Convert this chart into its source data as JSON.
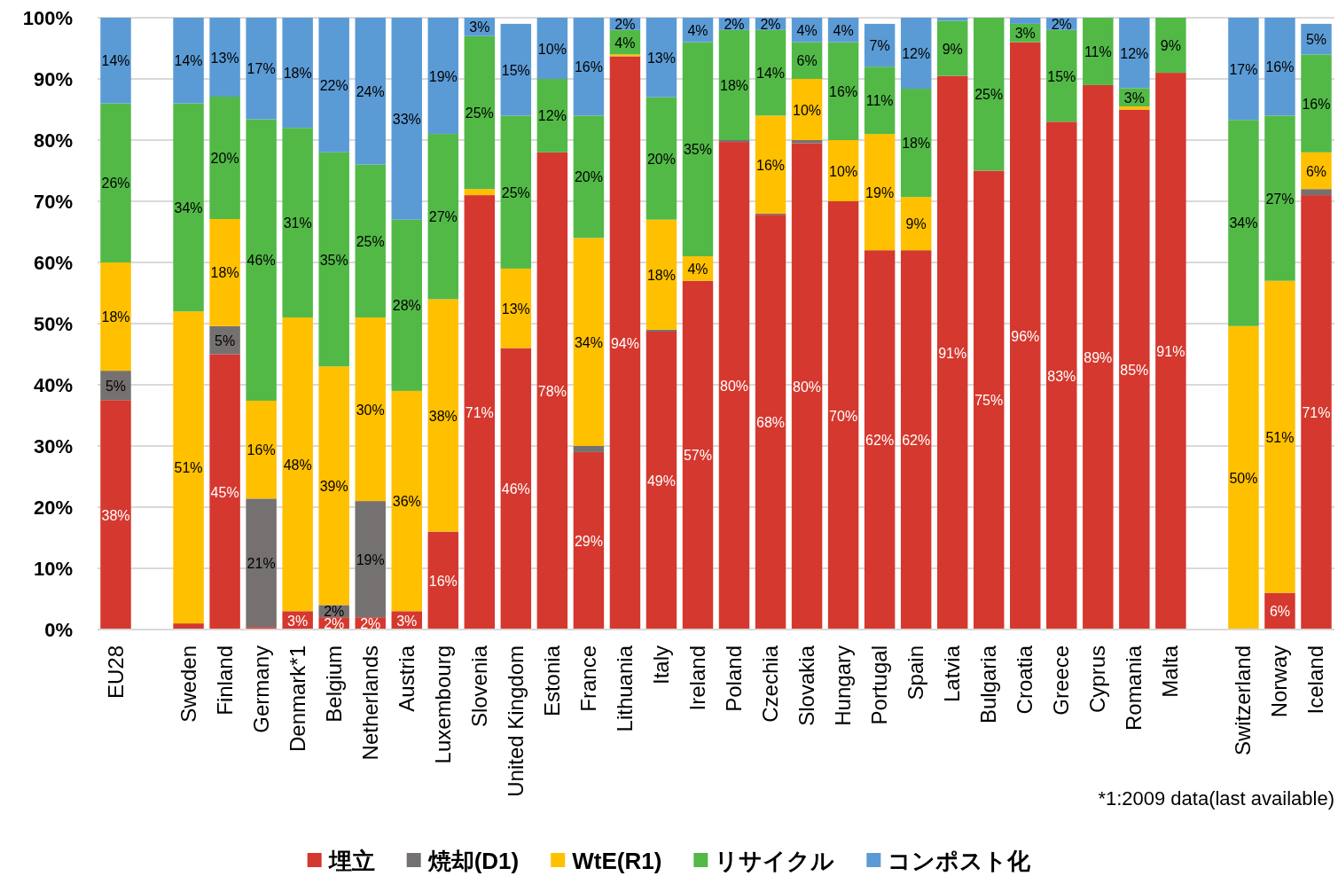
{
  "chart_data": {
    "type": "bar",
    "stacked": true,
    "categories": [
      "EU28",
      null,
      "Sweden",
      "Finland",
      "Germany",
      "Denmark*1",
      "Belgium",
      "Netherlands",
      "Austria",
      "Luxembourg",
      "Slovenia",
      "United Kingdom",
      "Estonia",
      "France",
      "Lithuania",
      "Italy",
      "Ireland",
      "Poland",
      "Czechia",
      "Slovakia",
      "Hungary",
      "Portugal",
      "Spain",
      "Latvia",
      "Bulgaria",
      "Croatia",
      "Greece",
      "Cyprus",
      "Romania",
      "Malta",
      null,
      "Switzerland",
      "Norway",
      "Iceland"
    ],
    "series": [
      {
        "name": "埋立",
        "color": "#d5382e",
        "values": [
          37.5,
          null,
          1,
          45,
          0.4,
          3,
          2,
          2,
          3,
          16,
          71,
          46,
          78,
          29,
          93.7,
          48.7,
          57,
          79.7,
          67.8,
          79.5,
          70,
          62,
          62,
          90.5,
          75,
          96,
          83,
          89,
          85,
          91,
          null,
          0,
          6,
          71
        ],
        "value_labels": [
          "38%",
          null,
          null,
          "45%",
          null,
          "3%",
          "2%",
          "2%",
          "3%",
          "16%",
          "71%",
          "46%",
          "78%",
          "29%",
          "94%",
          "49%",
          "57%",
          "80%",
          "68%",
          "80%",
          "70%",
          "62%",
          "62%",
          "91%",
          "75%",
          "96%",
          "83%",
          "89%",
          "85%",
          "91%",
          null,
          null,
          "6%",
          "71%"
        ]
      },
      {
        "name": "焼却(D1)",
        "color": "#767171",
        "values": [
          4.8,
          null,
          0,
          4.6,
          21,
          0,
          2,
          19,
          0,
          0,
          0,
          0,
          0,
          1,
          0,
          0.3,
          0,
          0.3,
          0.2,
          0.5,
          0,
          0,
          0,
          0,
          0,
          0,
          0,
          0,
          0,
          0,
          null,
          0,
          0,
          1
        ],
        "value_labels": [
          "5%",
          null,
          null,
          "5%",
          "21%",
          null,
          "2%",
          "19%",
          null,
          null,
          null,
          null,
          null,
          null,
          null,
          null,
          null,
          null,
          null,
          null,
          null,
          null,
          null,
          null,
          null,
          null,
          null,
          null,
          null,
          null,
          null,
          null,
          null,
          null
        ]
      },
      {
        "name": "WtE(R1)",
        "color": "#ffc000",
        "values": [
          17.7,
          null,
          51,
          17.5,
          16,
          48,
          39,
          30,
          36,
          38,
          1,
          13,
          0,
          34,
          0.3,
          18,
          4,
          0,
          16,
          10,
          10,
          19,
          8.7,
          0,
          0,
          0,
          0,
          0,
          0.5,
          0,
          null,
          49.6,
          51,
          6
        ],
        "value_labels": [
          "18%",
          null,
          "51%",
          "18%",
          "16%",
          "48%",
          "39%",
          "30%",
          "36%",
          "38%",
          null,
          "13%",
          null,
          "34%",
          null,
          "18%",
          "4%",
          null,
          "16%",
          "10%",
          "10%",
          "19%",
          "9%",
          null,
          null,
          null,
          null,
          null,
          null,
          null,
          null,
          "50%",
          "51%",
          "6%"
        ]
      },
      {
        "name": "リサイクル",
        "color": "#52b947",
        "values": [
          26,
          null,
          34,
          20,
          46,
          31,
          35,
          25,
          28,
          27,
          25,
          25,
          12,
          20,
          4,
          20,
          35,
          18,
          14,
          6,
          16,
          11,
          17.7,
          9,
          25,
          3,
          15,
          11,
          3,
          9,
          null,
          33.7,
          27,
          16
        ],
        "value_labels": [
          "26%",
          null,
          "34%",
          "20%",
          "46%",
          "31%",
          "35%",
          "25%",
          "28%",
          "27%",
          "25%",
          "25%",
          "12%",
          "20%",
          "4%",
          "20%",
          "35%",
          "18%",
          "14%",
          "6%",
          "16%",
          "11%",
          "18%",
          "9%",
          "25%",
          "3%",
          "15%",
          "11%",
          "3%",
          "9%",
          null,
          "34%",
          "27%",
          "16%"
        ]
      },
      {
        "name": "コンポスト化",
        "color": "#5b9bd5",
        "values": [
          14,
          null,
          14,
          12.9,
          16.6,
          18,
          22,
          24,
          33,
          19,
          3,
          15,
          10,
          16,
          2,
          13,
          4,
          2,
          2,
          4,
          4,
          7,
          11.6,
          0.5,
          0,
          1,
          2,
          0,
          11.5,
          0,
          null,
          16.7,
          16,
          5
        ],
        "value_labels": [
          "14%",
          null,
          "14%",
          "13%",
          "17%",
          "18%",
          "22%",
          "24%",
          "33%",
          "19%",
          "3%",
          "15%",
          "10%",
          "16%",
          "2%",
          "13%",
          "4%",
          "2%",
          "2%",
          "4%",
          "4%",
          "7%",
          "12%",
          null,
          null,
          null,
          "2%",
          null,
          "12%",
          null,
          null,
          "17%",
          "16%",
          "5%"
        ]
      }
    ],
    "ylim": [
      0,
      100
    ],
    "yticks": [
      {
        "value": 0,
        "label": "0%"
      },
      {
        "value": 10,
        "label": "10%"
      },
      {
        "value": 20,
        "label": "20%"
      },
      {
        "value": 30,
        "label": "30%"
      },
      {
        "value": 40,
        "label": "40%"
      },
      {
        "value": 50,
        "label": "50%"
      },
      {
        "value": 60,
        "label": "60%"
      },
      {
        "value": 70,
        "label": "70%"
      },
      {
        "value": 80,
        "label": "80%"
      },
      {
        "value": 90,
        "label": "90%"
      },
      {
        "value": 100,
        "label": "100%"
      }
    ],
    "grid": "y",
    "legend": "bottom",
    "annotations": [
      "*1:2009 data(last available)"
    ]
  }
}
